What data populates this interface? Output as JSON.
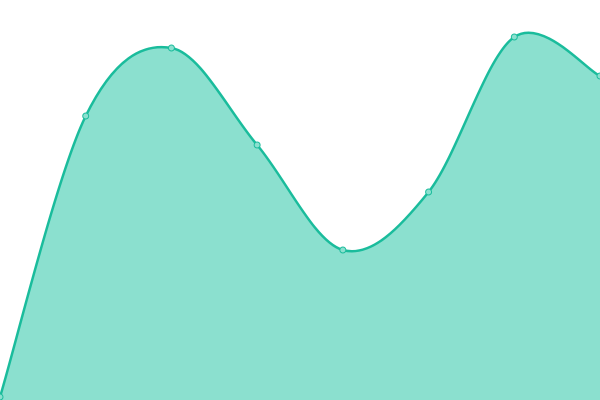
{
  "chart_data": {
    "type": "area",
    "x": [
      0,
      1,
      2,
      3,
      4,
      5,
      6,
      7
    ],
    "values": [
      3,
      284,
      352,
      255,
      150,
      208,
      363,
      324
    ],
    "xlim": [
      0,
      7
    ],
    "ylim": [
      0,
      400
    ],
    "grid": false,
    "axes": false,
    "legend": "none",
    "smooth": true,
    "markers": true,
    "colors": {
      "line": "#1abc9c",
      "fill": "#8be0cf",
      "marker": "#8be0cf"
    }
  }
}
